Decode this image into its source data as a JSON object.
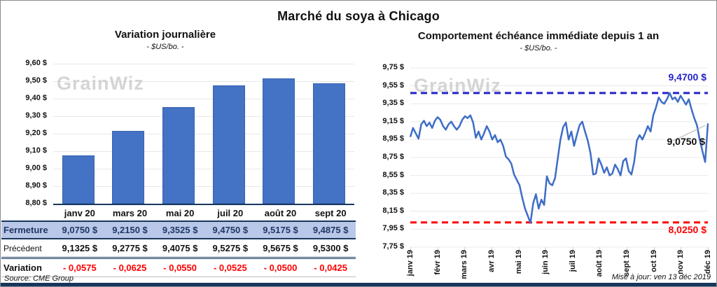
{
  "page": {
    "title": "Marché du soya à Chicago",
    "source": "Source: CME Group",
    "updated": "Mise à jour: ven 13 déc 2019",
    "watermark": "GrainWiz"
  },
  "left_chart": {
    "title": "Variation journalière",
    "subtitle": "- $US/bo. -",
    "y_ticks": [
      "9,60 $",
      "9,50 $",
      "9,40 $",
      "9,30 $",
      "9,20 $",
      "9,10 $",
      "9,00 $",
      "8,90 $",
      "8,80 $"
    ]
  },
  "right_chart": {
    "title": "Comportement échéance immédiate depuis 1 an",
    "subtitle": "- $US/bo. -",
    "y_ticks": [
      "9,75 $",
      "9,55 $",
      "9,35 $",
      "9,15 $",
      "8,95 $",
      "8,75 $",
      "8,55 $",
      "8,35 $",
      "8,15 $",
      "7,95 $",
      "7,75 $"
    ],
    "resistance": {
      "value": 9.47,
      "label": "9,4700 $",
      "color": "#2323C9"
    },
    "support": {
      "value": 8.025,
      "label": "8,0250 $",
      "color": "#FF0000"
    },
    "last": {
      "value": 9.075,
      "label": "9,0750 $"
    }
  },
  "table": {
    "columns": [
      "janv 20",
      "mars 20",
      "mai 20",
      "juil 20",
      "août 20",
      "sept 20"
    ],
    "rows": [
      {
        "key": "fermeture",
        "label": "Fermeture",
        "values": [
          "9,0750 $",
          "9,2150 $",
          "9,3525 $",
          "9,4750 $",
          "9,5175 $",
          "9,4875 $"
        ]
      },
      {
        "key": "precedent",
        "label": "Précédent",
        "values": [
          "9,1325 $",
          "9,2775 $",
          "9,4075 $",
          "9,5275 $",
          "9,5675 $",
          "9,5300 $"
        ]
      },
      {
        "key": "variation",
        "label": "Variation",
        "values": [
          "- 0,0575",
          "- 0,0625",
          "- 0,0550",
          "- 0,0525",
          "- 0,0500",
          "- 0,0425"
        ]
      }
    ]
  },
  "chart_data": [
    {
      "type": "bar",
      "title": "Variation journalière",
      "ylabel": "$US/bo.",
      "categories": [
        "janv 20",
        "mars 20",
        "mai 20",
        "juil 20",
        "août 20",
        "sept 20"
      ],
      "values": [
        9.075,
        9.215,
        9.3525,
        9.475,
        9.5175,
        9.4875
      ],
      "ylim": [
        8.8,
        9.6
      ],
      "grid": true,
      "bar_color": "#4472C4"
    },
    {
      "type": "line",
      "title": "Comportement échéance immédiate depuis 1 an",
      "ylabel": "$US/bo.",
      "x_labels": [
        "janv 19",
        "févr 19",
        "mars 19",
        "avr 19",
        "mai 19",
        "juin 19",
        "juil 19",
        "août 19",
        "sept 19",
        "oct 19",
        "nov 19",
        "déc 19"
      ],
      "values": [
        8.98,
        9.08,
        9.02,
        8.96,
        9.12,
        9.16,
        9.1,
        9.14,
        9.08,
        9.16,
        9.2,
        9.17,
        9.1,
        9.06,
        9.12,
        9.15,
        9.1,
        9.06,
        9.1,
        9.17,
        9.21,
        9.19,
        9.22,
        9.14,
        8.97,
        9.04,
        8.95,
        9.02,
        9.1,
        9.04,
        8.95,
        9.0,
        8.92,
        8.95,
        8.88,
        8.76,
        8.73,
        8.68,
        8.56,
        8.5,
        8.44,
        8.3,
        8.18,
        8.1,
        8.02,
        8.24,
        8.34,
        8.18,
        8.28,
        8.22,
        8.54,
        8.46,
        8.44,
        8.52,
        8.74,
        8.95,
        9.09,
        9.14,
        8.95,
        9.04,
        8.88,
        9.0,
        9.11,
        9.15,
        9.04,
        8.94,
        8.8,
        8.56,
        8.57,
        8.74,
        8.67,
        8.58,
        8.64,
        8.55,
        8.57,
        8.67,
        8.62,
        8.55,
        8.71,
        8.74,
        8.6,
        8.56,
        8.7,
        8.94,
        9.0,
        8.95,
        9.02,
        9.1,
        9.04,
        9.22,
        9.31,
        9.42,
        9.37,
        9.35,
        9.4,
        9.47,
        9.4,
        9.42,
        9.37,
        9.44,
        9.39,
        9.34,
        9.4,
        9.29,
        9.19,
        9.11,
        8.95,
        8.82,
        8.7,
        9.13
      ],
      "ylim": [
        7.75,
        9.75
      ],
      "annotations": {
        "resistance": 9.47,
        "support": 8.025,
        "last_close": 9.075
      },
      "grid": true,
      "line_color": "#3E6DC6"
    }
  ]
}
